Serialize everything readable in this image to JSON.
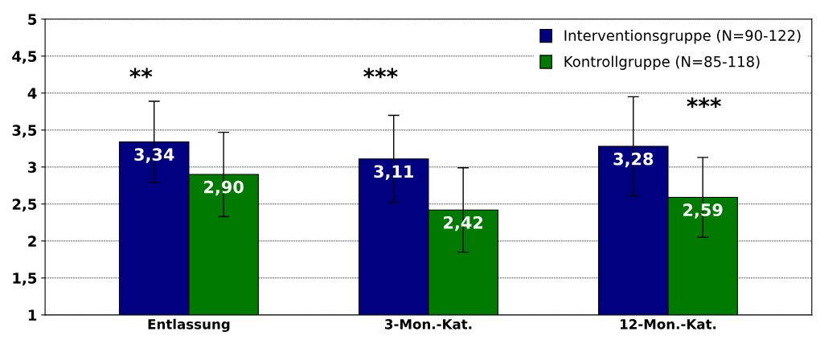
{
  "chart_data": {
    "type": "bar",
    "categories": [
      "Entlassung",
      "3-Mon.-Kat.",
      "12-Mon.-Kat."
    ],
    "series": [
      {
        "name": "Interventionsgruppe (N=90-122)",
        "color": "#000080",
        "values": [
          3.34,
          3.11,
          3.28
        ],
        "errors": [
          0.55,
          0.59,
          0.67
        ],
        "value_labels": [
          "3,34",
          "3,11",
          "3,28"
        ]
      },
      {
        "name": "Kontrollgruppe (N=85-118)",
        "color": "#007a00",
        "values": [
          2.9,
          2.42,
          2.59
        ],
        "errors": [
          0.57,
          0.57,
          0.54
        ],
        "value_labels": [
          "2,90",
          "2,42",
          "2,59"
        ]
      }
    ],
    "ylim": [
      1,
      5
    ],
    "yticks": [
      1,
      {
        "value": 1.5,
        "label": "1,5"
      },
      2,
      {
        "value": 2.5,
        "label": "2,5"
      },
      3,
      {
        "value": 3.5,
        "label": "3,5"
      },
      4,
      {
        "value": 4.5,
        "label": "4,5"
      },
      5
    ],
    "grid": "y",
    "legend": "top right",
    "annotations": [
      "**",
      "***",
      "***"
    ]
  }
}
